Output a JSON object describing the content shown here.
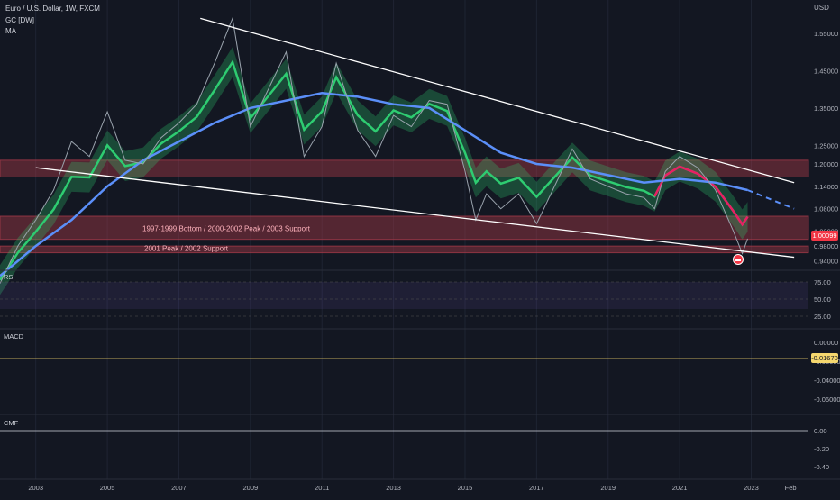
{
  "header": {
    "symbol": "Euro / U.S. Dollar, 1W, FXCM",
    "indicator_1": "GC [DW]",
    "indicator_2": "MA"
  },
  "colors": {
    "background": "#131722",
    "bull_ribbon": "#2ecc71",
    "bear_ribbon": "#e91e63",
    "ma_line": "#5b8ff9",
    "zone_fill": "#a33a48",
    "trendline": "#ffffff",
    "divergence": "#b5e48c",
    "price_badge": "#f23645",
    "macd_badge": "#f5d76e"
  },
  "annotations": {
    "zone_upper": "1997-1999 Bottom / 2000-2002 Peak / 2003 Support",
    "zone_lower": "2001 Peak / 2002 Support"
  },
  "price_axis": {
    "currency": "USD",
    "ticks": [
      "1.55000",
      "1.45000",
      "1.35000",
      "1.25000",
      "1.20000",
      "1.14000",
      "1.08000",
      "1.02000",
      "0.98000",
      "0.94000"
    ],
    "last_price": "1.00099"
  },
  "rsi": {
    "label": "RSI",
    "ticks": [
      "75.00",
      "50.00",
      "25.00"
    ]
  },
  "macd": {
    "label": "MACD",
    "ticks": [
      "0.00000",
      "-0.02000",
      "-0.04000",
      "-0.06000"
    ],
    "last_value": "-0.01670"
  },
  "cmf": {
    "label": "CMF",
    "ticks": [
      "0.00",
      "-0.20",
      "-0.40"
    ]
  },
  "time_axis": [
    "2003",
    "2005",
    "2007",
    "2009",
    "2011",
    "2013",
    "2015",
    "2017",
    "2019",
    "2021",
    "2023",
    "Feb"
  ],
  "chart_data": {
    "type": "line",
    "series": [
      {
        "name": "Euro / U.S. Dollar",
        "points": [
          [
            2002.0,
            0.88
          ],
          [
            2002.5,
            0.98
          ],
          [
            2003.0,
            1.05
          ],
          [
            2003.5,
            1.13
          ],
          [
            2004.0,
            1.26
          ],
          [
            2004.5,
            1.22
          ],
          [
            2005.0,
            1.34
          ],
          [
            2005.5,
            1.21
          ],
          [
            2006.0,
            1.2
          ],
          [
            2006.5,
            1.27
          ],
          [
            2007.0,
            1.31
          ],
          [
            2007.5,
            1.36
          ],
          [
            2008.0,
            1.47
          ],
          [
            2008.5,
            1.59
          ],
          [
            2009.0,
            1.3
          ],
          [
            2009.5,
            1.4
          ],
          [
            2010.0,
            1.5
          ],
          [
            2010.5,
            1.22
          ],
          [
            2011.0,
            1.3
          ],
          [
            2011.4,
            1.47
          ],
          [
            2012.0,
            1.29
          ],
          [
            2012.5,
            1.22
          ],
          [
            2013.0,
            1.33
          ],
          [
            2013.5,
            1.3
          ],
          [
            2014.0,
            1.37
          ],
          [
            2014.5,
            1.36
          ],
          [
            2015.0,
            1.18
          ],
          [
            2015.3,
            1.05
          ],
          [
            2015.6,
            1.12
          ],
          [
            2016.0,
            1.08
          ],
          [
            2016.5,
            1.12
          ],
          [
            2017.0,
            1.04
          ],
          [
            2017.5,
            1.14
          ],
          [
            2018.0,
            1.24
          ],
          [
            2018.5,
            1.16
          ],
          [
            2019.0,
            1.14
          ],
          [
            2019.5,
            1.12
          ],
          [
            2020.0,
            1.11
          ],
          [
            2020.3,
            1.08
          ],
          [
            2020.6,
            1.18
          ],
          [
            2021.0,
            1.22
          ],
          [
            2021.5,
            1.19
          ],
          [
            2022.0,
            1.13
          ],
          [
            2022.5,
            1.02
          ],
          [
            2022.75,
            0.96
          ],
          [
            2022.9,
            1.0
          ]
        ]
      }
    ],
    "ma_points": [
      [
        2002.0,
        0.9
      ],
      [
        2003.0,
        0.98
      ],
      [
        2004.0,
        1.05
      ],
      [
        2005.0,
        1.14
      ],
      [
        2006.0,
        1.21
      ],
      [
        2007.0,
        1.26
      ],
      [
        2008.0,
        1.31
      ],
      [
        2009.0,
        1.35
      ],
      [
        2010.0,
        1.37
      ],
      [
        2011.0,
        1.39
      ],
      [
        2012.0,
        1.38
      ],
      [
        2013.0,
        1.36
      ],
      [
        2014.0,
        1.35
      ],
      [
        2015.0,
        1.29
      ],
      [
        2016.0,
        1.23
      ],
      [
        2017.0,
        1.2
      ],
      [
        2018.0,
        1.19
      ],
      [
        2019.0,
        1.17
      ],
      [
        2020.0,
        1.15
      ],
      [
        2021.0,
        1.16
      ],
      [
        2022.0,
        1.15
      ],
      [
        2022.9,
        1.13
      ]
    ],
    "projection_points": [
      [
        2022.9,
        1.13
      ],
      [
        2024.2,
        1.08
      ]
    ],
    "trendlines": [
      [
        [
          2007.6,
          1.59
        ],
        [
          2024.2,
          1.15
        ]
      ],
      [
        [
          2003.0,
          1.19
        ],
        [
          2024.2,
          0.95
        ]
      ]
    ],
    "zones": [
      [
        1.165,
        1.21
      ],
      [
        0.998,
        1.06
      ],
      [
        0.962,
        0.98
      ]
    ],
    "y_range": [
      0.92,
      1.62
    ],
    "x_range": [
      2002.0,
      2024.6
    ]
  }
}
